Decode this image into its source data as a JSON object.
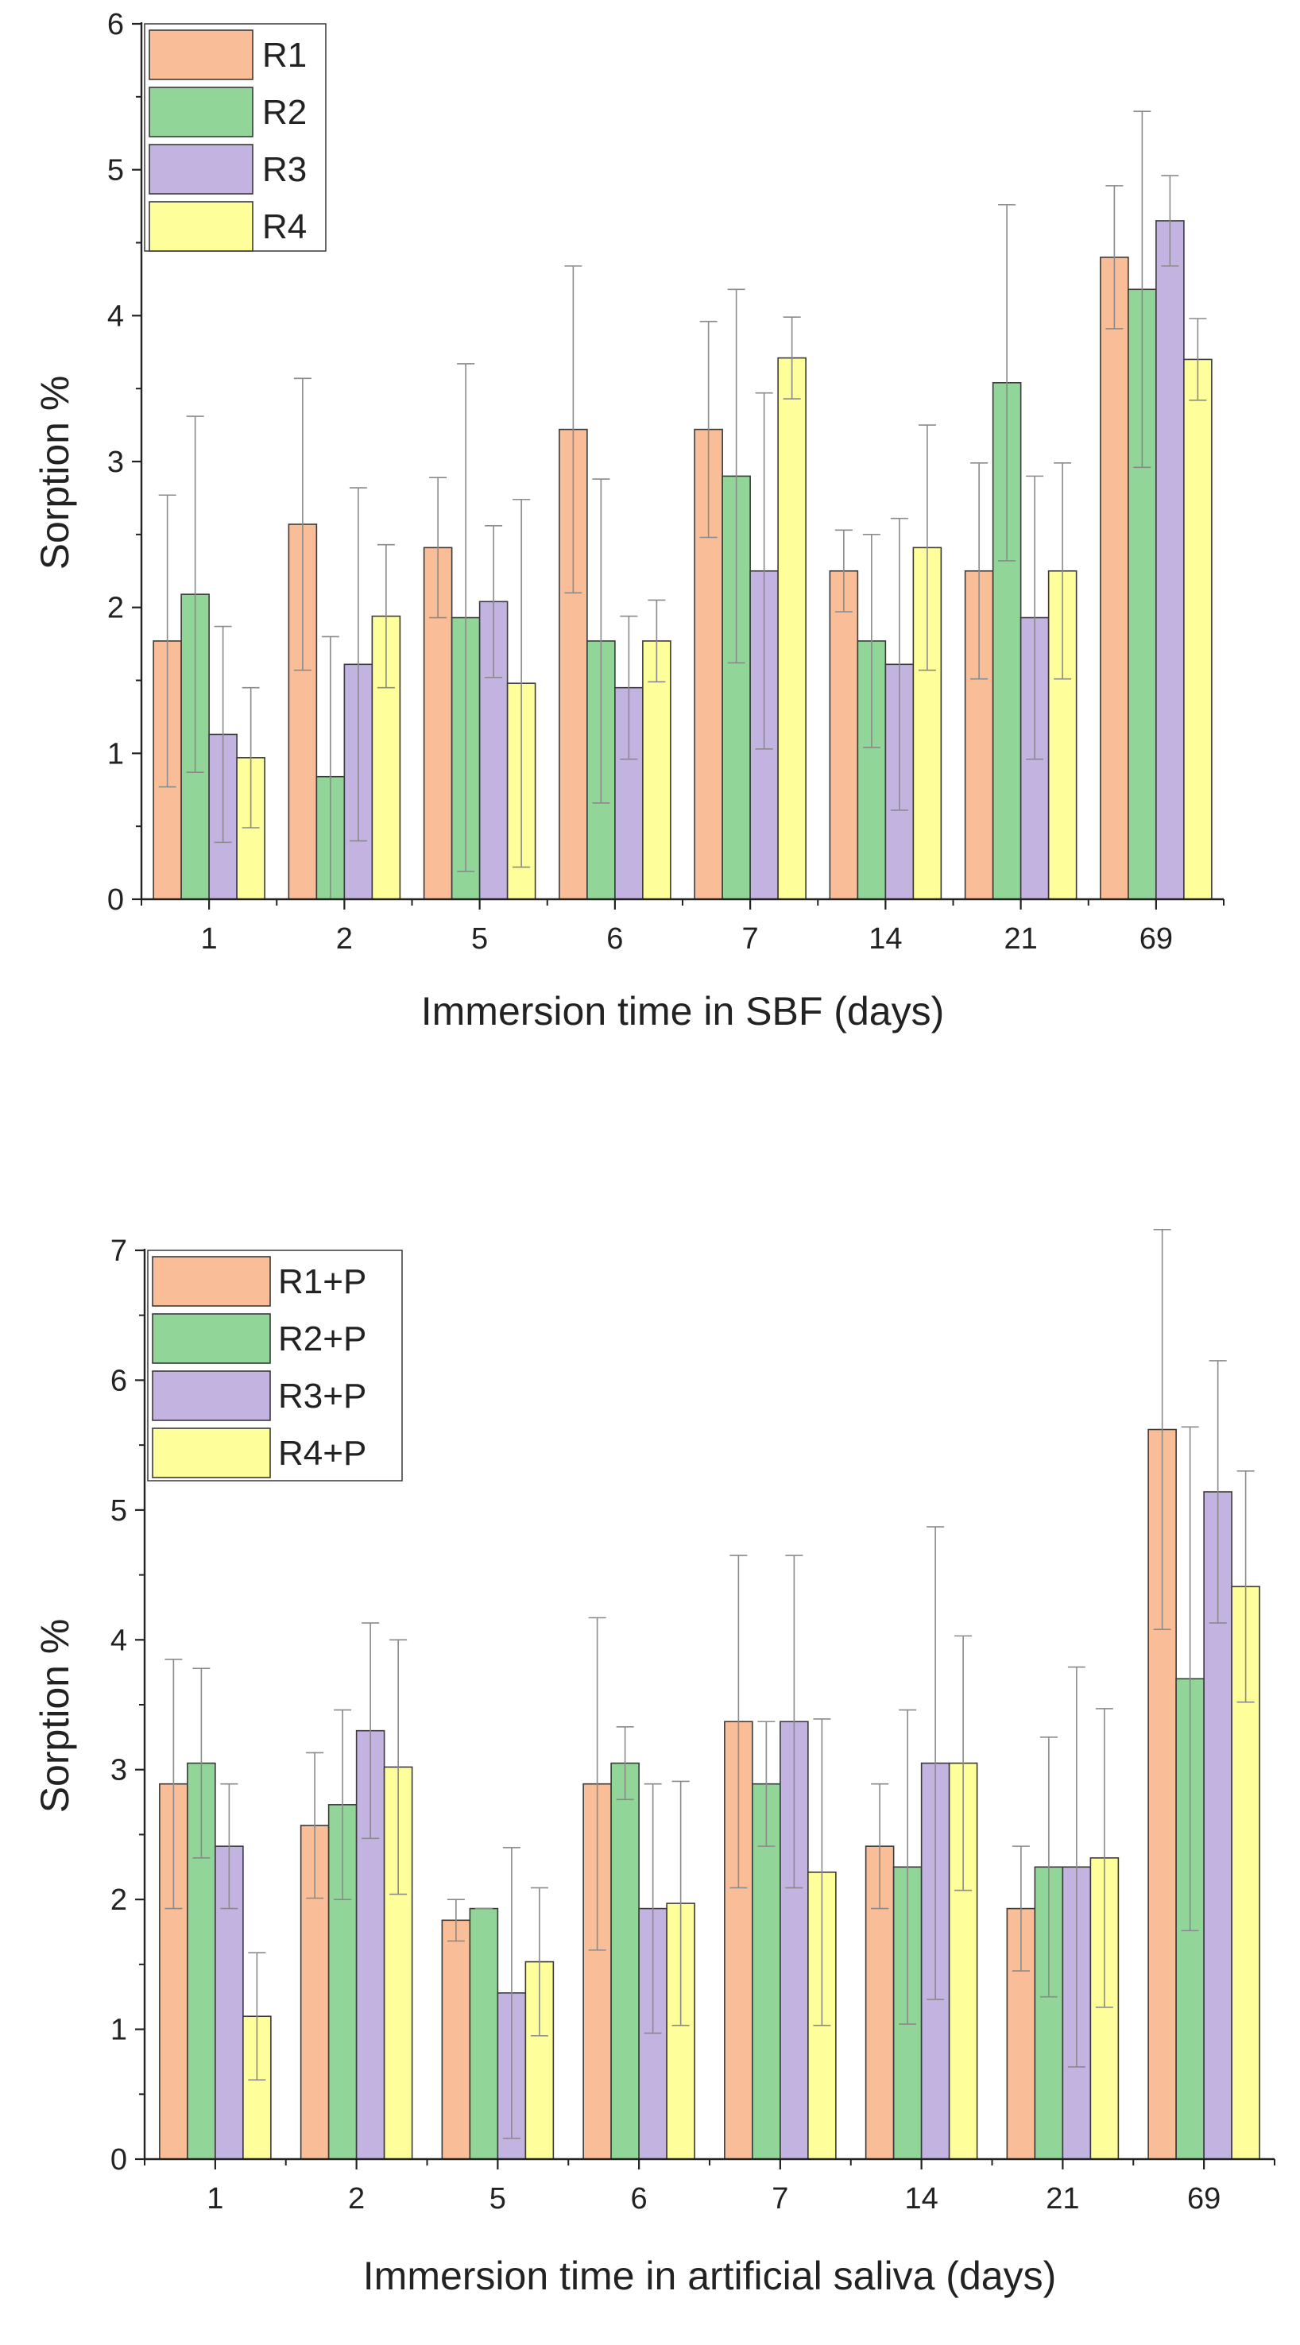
{
  "chart_data": [
    {
      "type": "bar",
      "title": "",
      "xlabel": "Immersion time in SBF (days)",
      "ylabel": "Sorption %",
      "ylim": [
        0,
        6
      ],
      "yticks": [
        "0",
        "1",
        "2",
        "3",
        "4",
        "5",
        "6"
      ],
      "grid": false,
      "legend_position": "top-left",
      "categories": [
        "1",
        "2",
        "5",
        "6",
        "7",
        "14",
        "21",
        "69"
      ],
      "series": [
        {
          "name": "R1",
          "color": "#F9BE98",
          "values": [
            1.77,
            2.57,
            2.41,
            3.22,
            3.22,
            2.25,
            2.25,
            4.4
          ],
          "errors": [
            1.0,
            1.0,
            0.48,
            1.12,
            0.74,
            0.28,
            0.74,
            0.49
          ]
        },
        {
          "name": "R2",
          "color": "#92D598",
          "values": [
            2.09,
            0.84,
            1.93,
            1.77,
            2.9,
            1.77,
            3.54,
            4.18
          ],
          "errors": [
            1.22,
            0.96,
            1.74,
            1.11,
            1.28,
            0.73,
            1.22,
            1.22
          ]
        },
        {
          "name": "R3",
          "color": "#C3B3E0",
          "values": [
            1.13,
            1.61,
            2.04,
            1.45,
            2.25,
            1.61,
            1.93,
            4.65
          ],
          "errors": [
            0.74,
            1.21,
            0.52,
            0.49,
            1.22,
            1.0,
            0.97,
            0.31
          ]
        },
        {
          "name": "R4",
          "color": "#FEFE9A",
          "values": [
            0.97,
            1.94,
            1.48,
            1.77,
            3.71,
            2.41,
            2.25,
            3.7
          ],
          "errors": [
            0.48,
            0.49,
            1.26,
            0.28,
            0.28,
            0.84,
            0.74,
            0.28
          ]
        }
      ]
    },
    {
      "type": "bar",
      "title": "",
      "xlabel": "Immersion time in artificial saliva (days)",
      "ylabel": "Sorption %",
      "ylim": [
        0,
        7
      ],
      "yticks": [
        "0",
        "1",
        "2",
        "3",
        "4",
        "5",
        "6",
        "7"
      ],
      "grid": false,
      "legend_position": "top-left",
      "categories": [
        "1",
        "2",
        "5",
        "6",
        "7",
        "14",
        "21",
        "69"
      ],
      "series": [
        {
          "name": "R1+P",
          "color": "#F9BE98",
          "values": [
            2.89,
            2.57,
            1.84,
            2.89,
            3.37,
            2.41,
            1.93,
            5.62
          ],
          "errors": [
            0.96,
            0.56,
            0.16,
            1.28,
            1.28,
            0.48,
            0.48,
            1.54
          ]
        },
        {
          "name": "R2+P",
          "color": "#92D598",
          "values": [
            3.05,
            2.73,
            1.93,
            3.05,
            2.89,
            2.25,
            2.25,
            3.7
          ],
          "errors": [
            0.73,
            0.73,
            0.0,
            0.28,
            0.48,
            1.21,
            1.0,
            1.94
          ]
        },
        {
          "name": "R3+P",
          "color": "#C3B3E0",
          "values": [
            2.41,
            3.3,
            1.28,
            1.93,
            3.37,
            3.05,
            2.25,
            5.14
          ],
          "errors": [
            0.48,
            0.83,
            1.12,
            0.96,
            1.28,
            1.82,
            1.54,
            1.01
          ]
        },
        {
          "name": "R4+P",
          "color": "#FEFE9A",
          "values": [
            1.1,
            3.02,
            1.52,
            1.97,
            2.21,
            3.05,
            2.32,
            4.41
          ],
          "errors": [
            0.49,
            0.98,
            0.57,
            0.94,
            1.18,
            0.98,
            1.15,
            0.89
          ]
        }
      ]
    }
  ]
}
